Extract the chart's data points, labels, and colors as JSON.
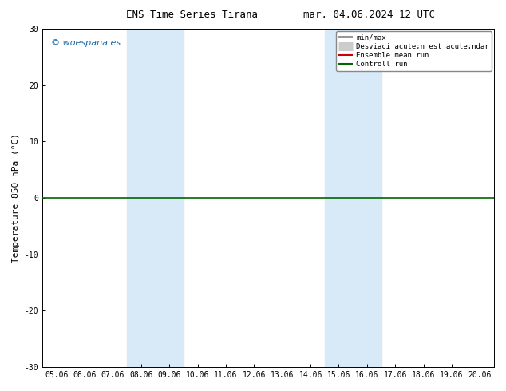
{
  "title_left": "ENS Time Series Tirana",
  "title_right": "mar. 04.06.2024 12 UTC",
  "ylabel": "Temperature 850 hPa (°C)",
  "ylim": [
    -30,
    30
  ],
  "yticks": [
    -30,
    -20,
    -10,
    0,
    10,
    20,
    30
  ],
  "xtick_labels": [
    "05.06",
    "06.06",
    "07.06",
    "08.06",
    "09.06",
    "10.06",
    "11.06",
    "12.06",
    "13.06",
    "14.06",
    "15.06",
    "16.06",
    "17.06",
    "18.06",
    "19.06",
    "20.06"
  ],
  "shaded_regions": [
    {
      "xstart": 3,
      "xend": 5,
      "color": "#d8eaf8",
      "alpha": 1.0
    },
    {
      "xstart": 10,
      "xend": 12,
      "color": "#d8eaf8",
      "alpha": 1.0
    }
  ],
  "hline_y": 0,
  "hline_color": "#006600",
  "hline_lw": 1.2,
  "copyright_text": "© woespana.es",
  "copyright_color": "#1a6aab",
  "legend_items": [
    {
      "label": "min/max",
      "color": "#999999",
      "lw": 1.5,
      "type": "line"
    },
    {
      "label": "Desviaci acute;n est acute;ndar",
      "color": "#cccccc",
      "lw": 8.0,
      "type": "line"
    },
    {
      "label": "Ensemble mean run",
      "color": "#cc0000",
      "lw": 1.5,
      "type": "line"
    },
    {
      "label": "Controll run",
      "color": "#006600",
      "lw": 1.5,
      "type": "line"
    }
  ],
  "background_color": "#ffffff",
  "plot_bg_color": "#ffffff",
  "title_fontsize": 9,
  "tick_fontsize": 7,
  "ylabel_fontsize": 8
}
